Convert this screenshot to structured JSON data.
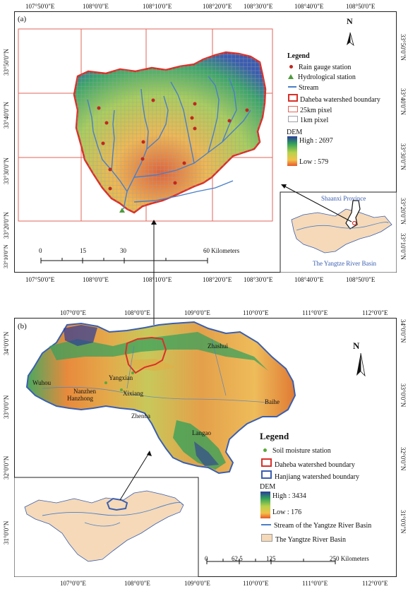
{
  "panel_a": {
    "label": "(a)",
    "top_ticks": [
      "107°50'0\"E",
      "108°0'0\"E",
      "108°10'0\"E",
      "108°20'0\"E",
      "108°30'0\"E",
      "108°40'0\"E",
      "108°50'0\"E"
    ],
    "bottom_ticks": [
      "107°50'0\"E",
      "108°0'0\"E",
      "108°10'0\"E",
      "108°20'0\"E",
      "108°30'0\"E",
      "108°40'0\"E",
      "108°50'0\"E"
    ],
    "left_ticks": [
      "33°50'0\"N",
      "33°40'0\"N",
      "33°30'0\"N",
      "33°20'0\"N",
      "33°10'0\"N"
    ],
    "right_ticks": [
      "33°50'0\"N",
      "33°40'0\"N",
      "33°30'0\"N",
      "33°20'0\"N",
      "33°10'0\"N"
    ],
    "north": "N",
    "legend": {
      "title": "Legend",
      "items": [
        "Rain gauge station",
        "Hydrological station",
        "Stream",
        "Daheba watershed boundary",
        "25km pixel",
        "1km pixel"
      ],
      "dem_title": "DEM",
      "dem_high": "High : 2697",
      "dem_low": "Low : 579"
    },
    "scale": {
      "labels": [
        "0",
        "15",
        "30",
        "60 Kilometers"
      ]
    },
    "inset": {
      "province": "Shaanxi Province",
      "basin": "The Yangtze River Basin"
    }
  },
  "panel_b": {
    "label": "(b)",
    "top_ticks": [
      "107°0'0\"E",
      "108°0'0\"E",
      "109°0'0\"E",
      "110°0'0\"E",
      "111°0'0\"E",
      "112°0'0\"E"
    ],
    "bottom_ticks": [
      "107°0'0\"E",
      "108°0'0\"E",
      "109°0'0\"E",
      "110°0'0\"E",
      "111°0'0\"E",
      "112°0'0\"E"
    ],
    "left_ticks": [
      "34°0'0\"N",
      "33°0'0\"N",
      "32°0'0\"N",
      "31°0'0\"N"
    ],
    "right_ticks": [
      "34°0'0\"N",
      "33°0'0\"N",
      "32°0'0\"N",
      "31°0'0\"N"
    ],
    "north": "N",
    "cities": [
      "Zhashui",
      "Yangxian",
      "Wuhou",
      "Nanzhen",
      "Hanzhong",
      "Xixiang",
      "Baihe",
      "Zhenba",
      "Langao"
    ],
    "legend": {
      "title": "Legend",
      "items": [
        "Soil moisture station",
        "Daheba watershed boundary",
        "Hanjiang watershed boundary"
      ],
      "dem_title": "DEM",
      "dem_high": "High : 3434",
      "dem_low": "Low : 176",
      "items2": [
        "Stream of the Yangtze River Basin",
        "The Yangtze River Basin"
      ]
    },
    "scale": {
      "labels": [
        "0",
        "62.5",
        "125",
        "250 Kilometers"
      ]
    }
  },
  "colors": {
    "boundary_red": "#d9302a",
    "stream_blue": "#4a7fc8",
    "hanjiang_blue": "#3a5fb0",
    "basin_fill": "#f5d9b8",
    "rain_gauge": "#c0281e",
    "hydro_station": "#4f9a3c",
    "soil_station": "#5aa83c"
  }
}
